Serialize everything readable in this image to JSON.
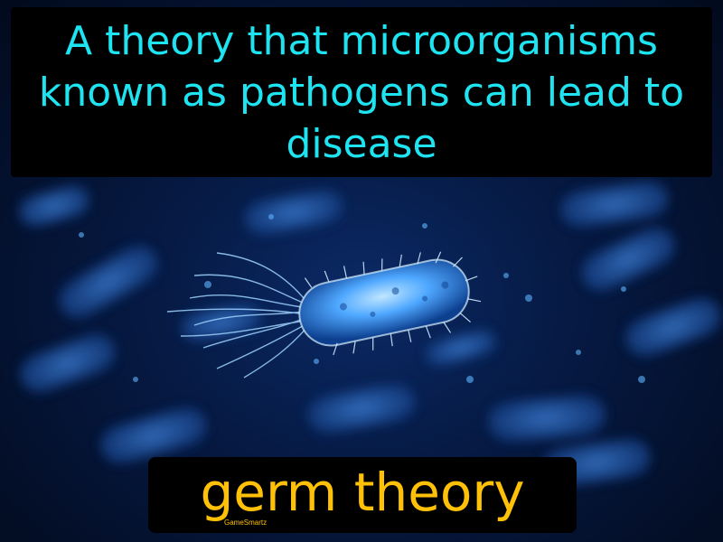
{
  "definition": {
    "text": "A theory that microorganisms known as pathogens can lead to disease"
  },
  "term": {
    "text": "germ theory"
  },
  "branding": {
    "text": "GameSmartz"
  },
  "background": {
    "subject": "bacteria-illustration",
    "colors": {
      "base": "#061a44",
      "glow": "#4fa8ff",
      "highlight": "#bfe6ff"
    }
  },
  "colors": {
    "definition_text": "#1ee3f0",
    "term_text": "#ffc107",
    "panel": "#000000"
  }
}
